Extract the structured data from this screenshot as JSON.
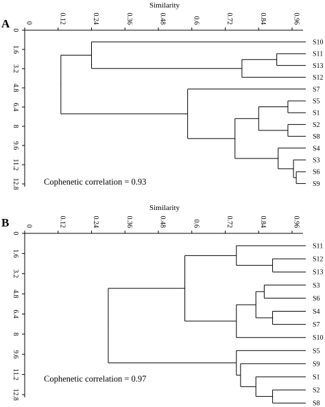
{
  "panels": [
    {
      "letter": "A",
      "x_title": "Similarity",
      "x_ticks": [
        "0",
        "0.12",
        "0.24",
        "0.36",
        "0.48",
        "0.6",
        "0.72",
        "0.84",
        "0.96"
      ],
      "y_ticks": [
        "0",
        "1.6",
        "3.2",
        "4.8",
        "6.4",
        "8",
        "9.6",
        "11.2",
        "12.8"
      ],
      "leaves": [
        "S10",
        "S11",
        "S13",
        "S12",
        "S7",
        "S5",
        "S1",
        "S2",
        "S8",
        "S4",
        "S3",
        "S6",
        "S9"
      ],
      "merges": [
        {
          "a": "L11",
          "b": "L12",
          "sim": 0.975
        },
        {
          "a": "L10",
          "b": "M0",
          "sim": 0.965
        },
        {
          "a": "L5",
          "b": "L6",
          "sim": 0.945
        },
        {
          "a": "L7",
          "b": "L8",
          "sim": 0.945
        },
        {
          "a": "L1",
          "b": "L2",
          "sim": 0.905
        },
        {
          "a": "L9",
          "b": "M1",
          "sim": 0.91
        },
        {
          "a": "M2",
          "b": "M3",
          "sim": 0.84
        },
        {
          "a": "M4",
          "b": "L3",
          "sim": 0.78
        },
        {
          "a": "M6",
          "b": "M5",
          "sim": 0.755
        },
        {
          "a": "L4",
          "b": "M8",
          "sim": 0.585
        },
        {
          "a": "L0",
          "b": "M7",
          "sim": 0.24
        },
        {
          "a": "M10",
          "b": "M9",
          "sim": 0.13
        }
      ],
      "note": "Cophenetic correlation = 0.93"
    },
    {
      "letter": "B",
      "x_title": "Similarity",
      "x_ticks": [
        "0",
        "0.12",
        "0.24",
        "0.36",
        "0.48",
        "0.6",
        "0.72",
        "0.84",
        "0.96"
      ],
      "y_ticks": [
        "0",
        "1.6",
        "3.2",
        "4.8",
        "6.4",
        "8",
        "9.6",
        "11.2",
        "12.8"
      ],
      "leaves": [
        "S11",
        "S12",
        "S13",
        "S3",
        "S6",
        "S4",
        "S7",
        "S10",
        "S5",
        "S9",
        "S1",
        "S2",
        "S8"
      ],
      "merges": [
        {
          "a": "L1",
          "b": "L2",
          "sim": 0.89
        },
        {
          "a": "L3",
          "b": "L4",
          "sim": 0.86
        },
        {
          "a": "L5",
          "b": "L6",
          "sim": 0.89
        },
        {
          "a": "L11",
          "b": "L12",
          "sim": 0.89
        },
        {
          "a": "M1",
          "b": "M2",
          "sim": 0.83
        },
        {
          "a": "L10",
          "b": "M3",
          "sim": 0.83
        },
        {
          "a": "L0",
          "b": "M0",
          "sim": 0.76
        },
        {
          "a": "M4",
          "b": "L7",
          "sim": 0.76
        },
        {
          "a": "L9",
          "b": "M5",
          "sim": 0.775
        },
        {
          "a": "M6",
          "b": "M7",
          "sim": 0.575
        },
        {
          "a": "L8",
          "b": "M8",
          "sim": 0.76
        },
        {
          "a": "M9",
          "b": "M10",
          "sim": 0.3
        }
      ],
      "note": "Cophenetic correlation = 0.97"
    }
  ]
}
